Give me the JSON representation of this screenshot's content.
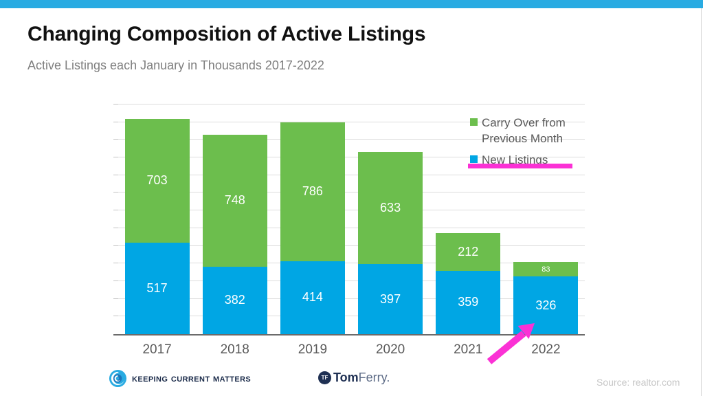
{
  "slide": {
    "title": "Changing Composition of Active Listings",
    "subtitle": "Active Listings each January in Thousands 2017-2022",
    "accent_color": "#29ABE2"
  },
  "chart_data": {
    "type": "bar",
    "stacked": true,
    "title": "Changing Composition of Active Listings",
    "subtitle": "Active Listings each January in Thousands 2017-2022",
    "categories": [
      "2017",
      "2018",
      "2019",
      "2020",
      "2021",
      "2022"
    ],
    "series": [
      {
        "name": "New Listings",
        "color": "#00A6E4",
        "values": [
          517,
          382,
          414,
          397,
          359,
          326
        ]
      },
      {
        "name": "Carry Over from Previous Month",
        "color": "#6CBE4D",
        "values": [
          703,
          748,
          786,
          633,
          212,
          83
        ]
      }
    ],
    "totals": [
      1220,
      1130,
      1200,
      1030,
      571,
      409
    ],
    "ylim": [
      0,
      1300
    ],
    "gridline_step": 100,
    "grid": "horizontal",
    "yaxis_labels": "none",
    "legend_position": "top-right",
    "data_labels": "inside center, white"
  },
  "legend": {
    "items": [
      {
        "label": "Carry Over from Previous Month",
        "color": "#6CBE4D"
      },
      {
        "label": "New Listings",
        "color": "#00A6E4"
      }
    ],
    "highlight_color": "#FB31D5"
  },
  "annotations": {
    "arrow": {
      "color": "#FB31D5",
      "points_to": "2022 bar"
    }
  },
  "footer": {
    "kcm_label": "Keeping Current Matters",
    "tomferry_badge": "TF",
    "tomferry_bold": "Tom",
    "tomferry_light": "Ferry.",
    "source": "Source: realtor.com"
  }
}
